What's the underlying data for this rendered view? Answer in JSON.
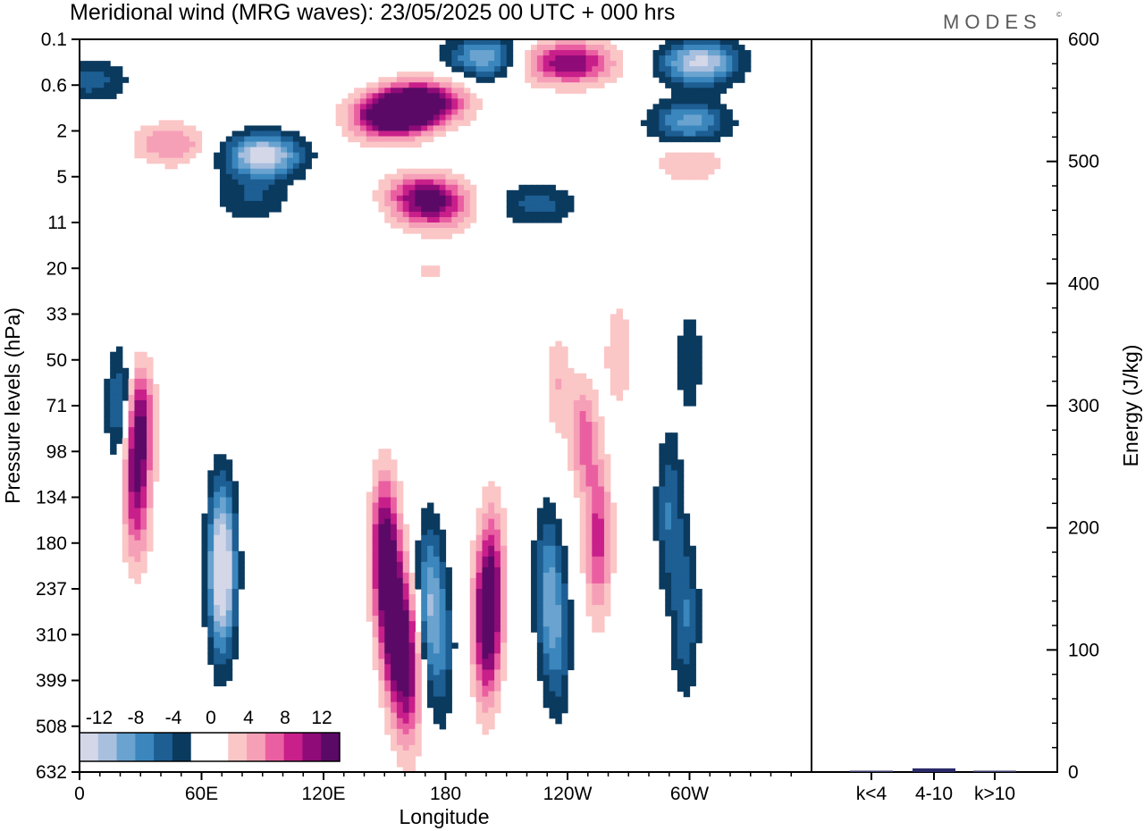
{
  "title": "Meridional wind (MRG waves):  23/05/2025  00 UTC  + 000 hrs",
  "logo": "MODES",
  "logo_mark": "©",
  "colors": {
    "neg": [
      "#0b3a5f",
      "#1d5e93",
      "#3a86bd",
      "#6aa3cf",
      "#a9bfde",
      "#d3d7e8"
    ],
    "pos": [
      "#fbc6c6",
      "#f6a0b8",
      "#ea5fa1",
      "#c81f8a",
      "#8e0b78",
      "#5a0a66"
    ]
  },
  "chart_data": [
    {
      "type": "heatmap",
      "title": "Meridional wind (MRG waves):  23/05/2025  00 UTC  + 000 hrs",
      "xlabel": "Longitude",
      "ylabel": "Pressure levels (hPa)",
      "x_ticks": [
        "0",
        "60E",
        "120E",
        "180",
        "120W",
        "60W"
      ],
      "y_ticks": [
        "0.1",
        "0.6",
        "2",
        "5",
        "11",
        "20",
        "33",
        "50",
        "71",
        "98",
        "134",
        "180",
        "237",
        "310",
        "399",
        "508",
        "632"
      ],
      "colorbar": {
        "labels": [
          "-12",
          "-8",
          "-4",
          "0",
          "4",
          "8",
          "12"
        ],
        "levels": [
          -14,
          -12,
          -10,
          -8,
          -6,
          -4,
          -2,
          2,
          4,
          6,
          8,
          10,
          12,
          14
        ]
      },
      "features": [
        {
          "lon": 160,
          "lev": 1.1,
          "v": 15
        },
        {
          "lon": 150,
          "lev": 1.5,
          "v": 9
        },
        {
          "lon": 175,
          "lev": 0.9,
          "v": 8
        },
        {
          "lon": 170,
          "lev": 6.8,
          "v": 11
        },
        {
          "lon": 175,
          "lev": 9.5,
          "v": 6
        },
        {
          "lon": 245,
          "lev": 0.25,
          "v": 10
        },
        {
          "lon": 225,
          "lev": 0.25,
          "v": 5
        },
        {
          "lon": 90,
          "lev": 3.3,
          "v": -14
        },
        {
          "lon": 200,
          "lev": 0.2,
          "v": -10
        },
        {
          "lon": 305,
          "lev": 0.25,
          "v": -13
        },
        {
          "lon": 300,
          "lev": 1.6,
          "v": -9
        },
        {
          "lon": 5,
          "lev": 0.5,
          "v": -5
        },
        {
          "lon": 225,
          "lev": 8.0,
          "v": -5
        },
        {
          "lon": 85,
          "lev": 7.5,
          "v": -4
        },
        {
          "lon": 30,
          "lev": 77,
          "v": 9
        },
        {
          "lon": 28,
          "lev": 122,
          "v": 11
        },
        {
          "lon": 20,
          "lev": 71,
          "v": -7
        },
        {
          "lon": 45,
          "lev": 2.6,
          "v": 6
        },
        {
          "lon": 70,
          "lev": 190,
          "v": -10
        },
        {
          "lon": 70,
          "lev": 240,
          "v": -8
        },
        {
          "lon": 150,
          "lev": 190,
          "v": 14
        },
        {
          "lon": 155,
          "lev": 300,
          "v": 13
        },
        {
          "lon": 162,
          "lev": 380,
          "v": 11
        },
        {
          "lon": 172,
          "lev": 250,
          "v": -9
        },
        {
          "lon": 178,
          "lev": 340,
          "v": -5
        },
        {
          "lon": 200,
          "lev": 300,
          "v": 12
        },
        {
          "lon": 203,
          "lev": 220,
          "v": 8
        },
        {
          "lon": 230,
          "lev": 230,
          "v": -7
        },
        {
          "lon": 235,
          "lev": 320,
          "v": -6
        },
        {
          "lon": 255,
          "lev": 175,
          "v": 9
        },
        {
          "lon": 248,
          "lev": 88,
          "v": 7
        },
        {
          "lon": 290,
          "lev": 148,
          "v": -6
        },
        {
          "lon": 298,
          "lev": 280,
          "v": -6
        },
        {
          "lon": 265,
          "lev": 48,
          "v": 4
        },
        {
          "lon": 300,
          "lev": 50,
          "v": -4
        },
        {
          "lon": 235,
          "lev": 60,
          "v": 4
        },
        {
          "lon": 300,
          "lev": 3.7,
          "v": 4
        }
      ]
    },
    {
      "type": "bar",
      "categories": [
        "k<4",
        "4-10",
        "k>10"
      ],
      "values": [
        1.0,
        3.0,
        1.0
      ],
      "ylabel": "Energy (J/kg)",
      "ylim": [
        0,
        600
      ],
      "y_ticks": [
        "0",
        "100",
        "200",
        "300",
        "400",
        "500",
        "600"
      ]
    }
  ]
}
